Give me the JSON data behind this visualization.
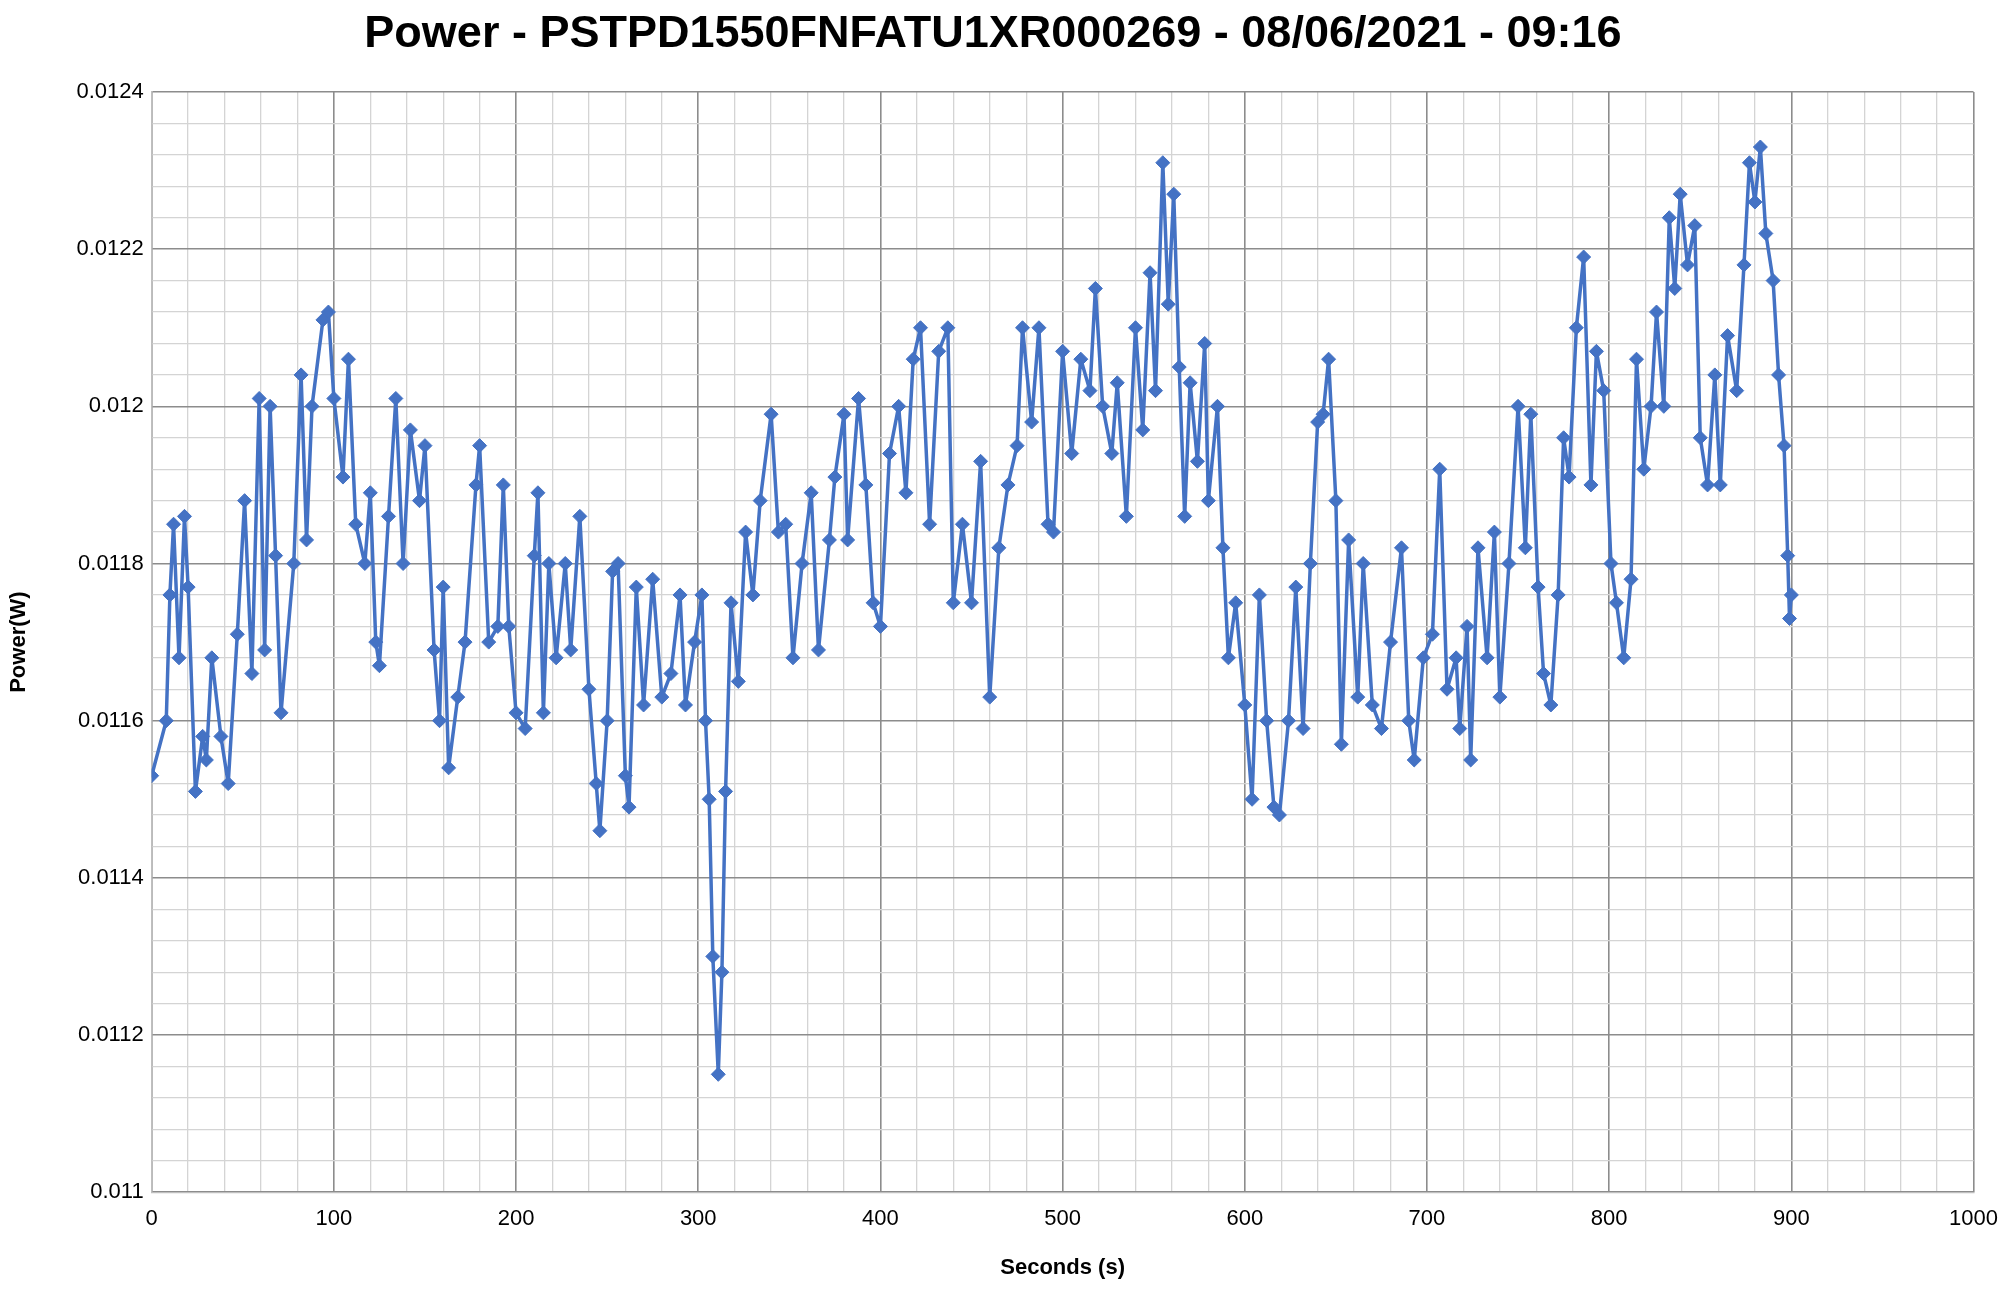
{
  "chart_data": {
    "type": "line",
    "title": "Power - PSTPD1550FNFATU1XR000269 - 08/06/2021 - 09:16",
    "xlabel": "Seconds (s)",
    "ylabel": "Power(W)",
    "x": [
      0,
      8,
      10,
      12,
      15,
      18,
      20,
      24,
      28,
      30,
      33,
      38,
      42,
      47,
      51,
      55,
      59,
      62,
      65,
      68,
      71,
      78,
      82,
      85,
      88,
      94,
      97,
      100,
      105,
      108,
      112,
      117,
      120,
      123,
      125,
      130,
      134,
      138,
      142,
      147,
      150,
      155,
      158,
      160,
      163,
      168,
      172,
      178,
      180,
      185,
      190,
      193,
      196,
      200,
      205,
      210,
      212,
      215,
      218,
      222,
      227,
      230,
      235,
      240,
      244,
      246,
      250,
      253,
      256,
      260,
      262,
      266,
      270,
      275,
      280,
      285,
      290,
      293,
      298,
      302,
      304,
      306,
      308,
      311,
      313,
      315,
      318,
      322,
      326,
      330,
      334,
      340,
      344,
      348,
      352,
      357,
      362,
      366,
      372,
      375,
      380,
      382,
      388,
      392,
      396,
      400,
      405,
      410,
      414,
      418,
      422,
      427,
      432,
      437,
      440,
      445,
      450,
      455,
      460,
      465,
      470,
      475,
      478,
      483,
      487,
      492,
      495,
      500,
      505,
      510,
      515,
      518,
      522,
      527,
      530,
      535,
      540,
      544,
      548,
      551,
      555,
      558,
      561,
      564,
      567,
      570,
      574,
      578,
      580,
      585,
      588,
      591,
      595,
      600,
      604,
      608,
      612,
      616,
      619,
      624,
      628,
      632,
      636,
      640,
      643,
      646,
      650,
      653,
      657,
      662,
      665,
      670,
      675,
      680,
      686,
      690,
      693,
      698,
      703,
      707,
      711,
      716,
      718,
      722,
      724,
      728,
      733,
      737,
      740,
      745,
      750,
      754,
      757,
      761,
      764,
      768,
      772,
      775,
      778,
      782,
      786,
      790,
      793,
      797,
      801,
      804,
      808,
      812,
      815,
      819,
      823,
      826,
      830,
      833,
      836,
      839,
      843,
      847,
      850,
      854,
      858,
      861,
      865,
      870,
      874,
      877,
      880,
      883,
      886,
      890,
      893,
      896,
      898,
      899,
      900
    ],
    "series": [
      {
        "color": "#4472c4",
        "values": [
          0.01153,
          0.0116,
          0.01176,
          0.01185,
          0.01168,
          0.01186,
          0.01177,
          0.01151,
          0.01158,
          0.01155,
          0.01168,
          0.01158,
          0.01152,
          0.01171,
          0.01188,
          0.01166,
          0.01201,
          0.01169,
          0.012,
          0.01181,
          0.01161,
          0.0118,
          0.01204,
          0.01183,
          0.012,
          0.01211,
          0.01212,
          0.01201,
          0.01191,
          0.01206,
          0.01185,
          0.0118,
          0.01189,
          0.0117,
          0.01167,
          0.01186,
          0.01201,
          0.0118,
          0.01197,
          0.01188,
          0.01195,
          0.01169,
          0.0116,
          0.01177,
          0.01154,
          0.01163,
          0.0117,
          0.0119,
          0.01195,
          0.0117,
          0.01172,
          0.0119,
          0.01172,
          0.01161,
          0.01159,
          0.01181,
          0.01189,
          0.01161,
          0.0118,
          0.01168,
          0.0118,
          0.01169,
          0.01186,
          0.01164,
          0.01152,
          0.01146,
          0.0116,
          0.01179,
          0.0118,
          0.01153,
          0.01149,
          0.01177,
          0.01162,
          0.01178,
          0.01163,
          0.01166,
          0.01176,
          0.01162,
          0.0117,
          0.01176,
          0.0116,
          0.0115,
          0.0113,
          0.01115,
          0.01128,
          0.01151,
          0.01175,
          0.01165,
          0.01184,
          0.01176,
          0.01188,
          0.01199,
          0.01184,
          0.01185,
          0.01168,
          0.0118,
          0.01189,
          0.01169,
          0.01183,
          0.01191,
          0.01199,
          0.01183,
          0.01201,
          0.0119,
          0.01175,
          0.01172,
          0.01194,
          0.012,
          0.01189,
          0.01206,
          0.0121,
          0.01185,
          0.01207,
          0.0121,
          0.01175,
          0.01185,
          0.01175,
          0.01193,
          0.01163,
          0.01182,
          0.0119,
          0.01195,
          0.0121,
          0.01198,
          0.0121,
          0.01185,
          0.01184,
          0.01207,
          0.01194,
          0.01206,
          0.01202,
          0.01215,
          0.012,
          0.01194,
          0.01203,
          0.01186,
          0.0121,
          0.01197,
          0.01217,
          0.01202,
          0.01231,
          0.01213,
          0.01227,
          0.01205,
          0.01186,
          0.01203,
          0.01193,
          0.01208,
          0.01188,
          0.012,
          0.01182,
          0.01168,
          0.01175,
          0.01162,
          0.0115,
          0.01176,
          0.0116,
          0.01149,
          0.01148,
          0.0116,
          0.01177,
          0.01159,
          0.0118,
          0.01198,
          0.01199,
          0.01206,
          0.01188,
          0.01157,
          0.01183,
          0.01163,
          0.0118,
          0.01162,
          0.01159,
          0.0117,
          0.01182,
          0.0116,
          0.01155,
          0.01168,
          0.01171,
          0.01192,
          0.01164,
          0.01168,
          0.01159,
          0.01172,
          0.01155,
          0.01182,
          0.01168,
          0.01184,
          0.01163,
          0.0118,
          0.012,
          0.01182,
          0.01199,
          0.01177,
          0.01166,
          0.01162,
          0.01176,
          0.01196,
          0.01191,
          0.0121,
          0.01219,
          0.0119,
          0.01207,
          0.01202,
          0.0118,
          0.01175,
          0.01168,
          0.01178,
          0.01206,
          0.01192,
          0.012,
          0.01212,
          0.012,
          0.01224,
          0.01215,
          0.01227,
          0.01218,
          0.01223,
          0.01196,
          0.0119,
          0.01204,
          0.0119,
          0.01209,
          0.01202,
          0.01218,
          0.01231,
          0.01226,
          0.01233,
          0.01222,
          0.01216,
          0.01204,
          0.01195,
          0.01181,
          0.01173,
          0.01176
        ]
      }
    ],
    "xlim": [
      0,
      1000
    ],
    "xticks": [
      0,
      {
        "value": 20,
        "label": null
      },
      {
        "value": 40,
        "label": null
      },
      {
        "value": 60,
        "label": null
      },
      {
        "value": 80,
        "label": null
      },
      100,
      {
        "value": 120,
        "label": null
      },
      {
        "value": 140,
        "label": null
      },
      {
        "value": 160,
        "label": null
      },
      {
        "value": 180,
        "label": null
      },
      200,
      {
        "value": 220,
        "label": null
      },
      {
        "value": 240,
        "label": null
      },
      {
        "value": 260,
        "label": null
      },
      {
        "value": 280,
        "label": null
      },
      300,
      {
        "value": 320,
        "label": null
      },
      {
        "value": 340,
        "label": null
      },
      {
        "value": 360,
        "label": null
      },
      {
        "value": 380,
        "label": null
      },
      400,
      {
        "value": 420,
        "label": null
      },
      {
        "value": 440,
        "label": null
      },
      {
        "value": 460,
        "label": null
      },
      {
        "value": 480,
        "label": null
      },
      500,
      {
        "value": 520,
        "label": null
      },
      {
        "value": 540,
        "label": null
      },
      {
        "value": 560,
        "label": null
      },
      {
        "value": 580,
        "label": null
      },
      600,
      {
        "value": 620,
        "label": null
      },
      {
        "value": 640,
        "label": null
      },
      {
        "value": 660,
        "label": null
      },
      {
        "value": 680,
        "label": null
      },
      700,
      {
        "value": 720,
        "label": null
      },
      {
        "value": 740,
        "label": null
      },
      {
        "value": 760,
        "label": null
      },
      {
        "value": 780,
        "label": null
      },
      800,
      {
        "value": 820,
        "label": null
      },
      {
        "value": 840,
        "label": null
      },
      {
        "value": 860,
        "label": null
      },
      {
        "value": 880,
        "label": null
      },
      900,
      {
        "value": 920,
        "label": null
      },
      {
        "value": 940,
        "label": null
      },
      {
        "value": 960,
        "label": null
      },
      {
        "value": 980,
        "label": null
      },
      1000
    ],
    "ylim": [
      0.011,
      0.0124
    ],
    "yticks": [
      0.011,
      {
        "value": 0.01104,
        "label": null
      },
      {
        "value": 0.01108,
        "label": null
      },
      {
        "value": 0.01112,
        "label": null
      },
      {
        "value": 0.01116,
        "label": null
      },
      0.0112,
      {
        "value": 0.01124,
        "label": null
      },
      {
        "value": 0.01128,
        "label": null
      },
      {
        "value": 0.01132,
        "label": null
      },
      {
        "value": 0.01136,
        "label": null
      },
      0.0114,
      {
        "value": 0.01144,
        "label": null
      },
      {
        "value": 0.01148,
        "label": null
      },
      {
        "value": 0.01152,
        "label": null
      },
      {
        "value": 0.01156,
        "label": null
      },
      0.0116,
      {
        "value": 0.01164,
        "label": null
      },
      {
        "value": 0.01168,
        "label": null
      },
      {
        "value": 0.01172,
        "label": null
      },
      {
        "value": 0.01176,
        "label": null
      },
      0.0118,
      {
        "value": 0.01184,
        "label": null
      },
      {
        "value": 0.01188,
        "label": null
      },
      {
        "value": 0.01192,
        "label": null
      },
      {
        "value": 0.01196,
        "label": null
      },
      0.012,
      {
        "value": 0.01204,
        "label": null
      },
      {
        "value": 0.01208,
        "label": null
      },
      {
        "value": 0.01212,
        "label": null
      },
      {
        "value": 0.01216,
        "label": null
      },
      0.0122,
      {
        "value": 0.01224,
        "label": null
      },
      {
        "value": 0.01228,
        "label": null
      },
      {
        "value": 0.01232,
        "label": null
      },
      {
        "value": 0.01236,
        "label": null
      },
      0.0124
    ],
    "grid": true,
    "marker": "diamond",
    "line_style": "solid"
  }
}
